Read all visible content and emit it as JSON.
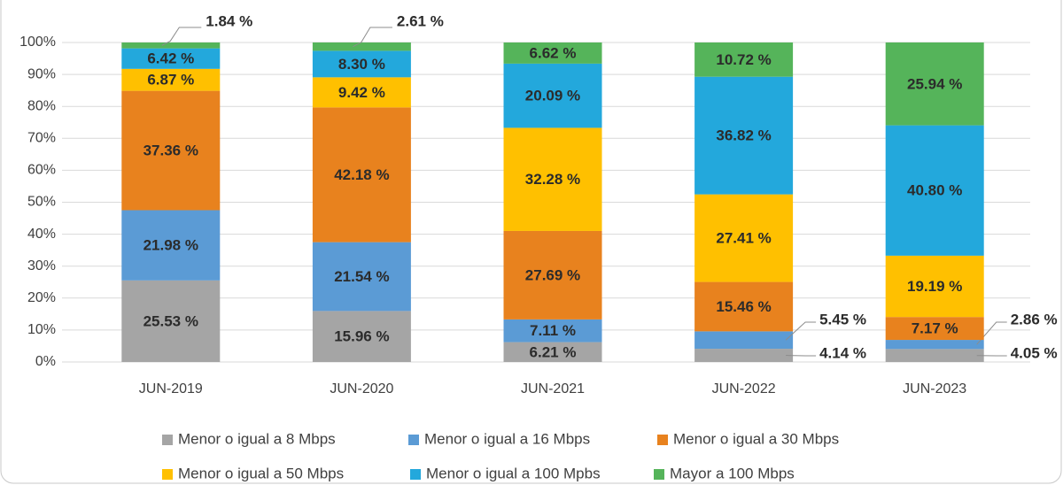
{
  "chart_data": {
    "type": "stacked_bar",
    "categories": [
      "JUN-2019",
      "JUN-2020",
      "JUN-2021",
      "JUN-2022",
      "JUN-2023"
    ],
    "series": [
      {
        "name": "Menor o igual a 8 Mbps",
        "color": "#a5a5a5",
        "values": [
          25.53,
          15.96,
          6.21,
          4.14,
          4.05
        ],
        "value_labels": [
          "25.53 %",
          "15.96 %",
          "6.21 %",
          "4.14 %",
          "4.05 %"
        ]
      },
      {
        "name": "Menor o igual a 16 Mbps",
        "color": "#5b9bd5",
        "values": [
          21.98,
          21.54,
          7.11,
          5.45,
          2.86
        ],
        "value_labels": [
          "21.98 %",
          "21.54 %",
          "7.11 %",
          "5.45 %",
          "2.86 %"
        ]
      },
      {
        "name": "Menor o igual a 30 Mbps",
        "color": "#e8821e",
        "values": [
          37.36,
          42.18,
          27.69,
          15.46,
          7.17
        ],
        "value_labels": [
          "37.36 %",
          "42.18 %",
          "27.69 %",
          "15.46 %",
          "7.17 %"
        ]
      },
      {
        "name": "Menor o igual a 50 Mbps",
        "color": "#ffc000",
        "values": [
          6.87,
          9.42,
          32.28,
          27.41,
          19.19
        ],
        "value_labels": [
          "6.87 %",
          "9.42 %",
          "32.28 %",
          "27.41 %",
          "19.19 %"
        ]
      },
      {
        "name": "Menor o igual a 100 Mpbs",
        "color": "#23a8dc",
        "values": [
          6.42,
          8.3,
          20.09,
          36.82,
          40.8
        ],
        "value_labels": [
          "6.42 %",
          "8.30 %",
          "20.09 %",
          "36.82 %",
          "40.80 %"
        ]
      },
      {
        "name": "Mayor a 100 Mbps",
        "color": "#55b45a",
        "values": [
          1.84,
          2.61,
          6.62,
          10.72,
          25.94
        ],
        "value_labels": [
          "1.84 %",
          "2.61 %",
          "6.62 %",
          "10.72 %",
          "25.94 %"
        ]
      }
    ],
    "ylim": [
      0,
      100
    ],
    "yticks": [
      {
        "value": 0,
        "label": "0%"
      },
      {
        "value": 10,
        "label": "10%"
      },
      {
        "value": 20,
        "label": "20%"
      },
      {
        "value": 30,
        "label": "30%"
      },
      {
        "value": 40,
        "label": "40%"
      },
      {
        "value": 50,
        "label": "50%"
      },
      {
        "value": 60,
        "label": "60%"
      },
      {
        "value": 70,
        "label": "70%"
      },
      {
        "value": 80,
        "label": "80%"
      },
      {
        "value": 90,
        "label": "90%"
      },
      {
        "value": 100,
        "label": "100%"
      }
    ],
    "grid": true,
    "legend": "bottom"
  }
}
